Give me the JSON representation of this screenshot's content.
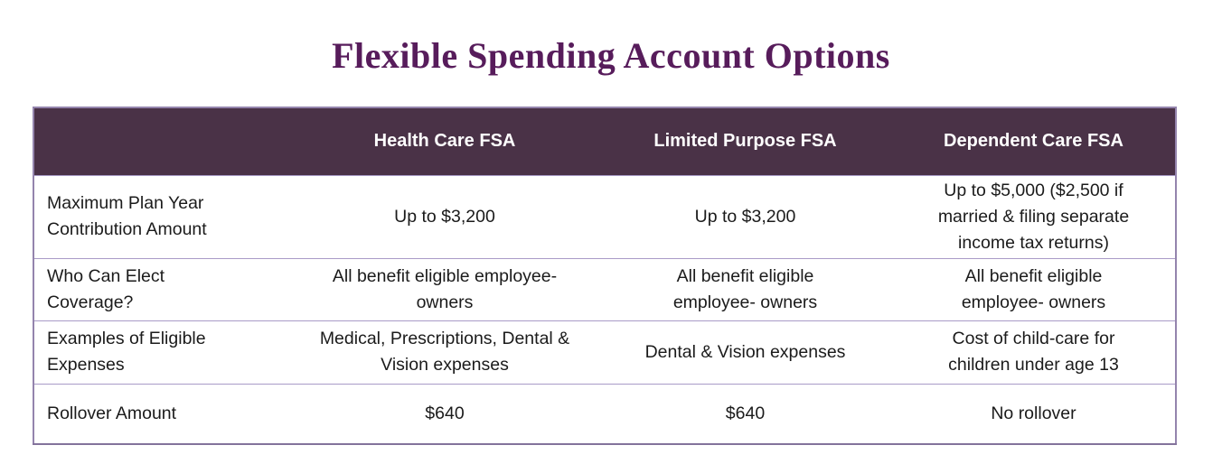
{
  "title": "Flexible Spending Account Options",
  "colors": {
    "title_text": "#571c5b",
    "header_bg": "#4a3247",
    "header_text": "#ffffff",
    "border_outer": "#9484ad",
    "border_inner": "#a99bc7",
    "body_text": "#1b1b1b",
    "page_bg": "#ffffff"
  },
  "table": {
    "columns": [
      "",
      "Health Care FSA",
      "Limited Purpose FSA",
      "Dependent Care FSA"
    ],
    "rows": [
      {
        "label": "Maximum Plan Year\nContribution Amount",
        "cells": [
          "Up to $3,200",
          "Up to $3,200",
          "Up to $5,000 ($2,500 if\nmarried & filing separate\nincome tax returns)"
        ]
      },
      {
        "label": "Who Can Elect\nCoverage?",
        "cells": [
          "All benefit eligible employee-\nowners",
          "All benefit eligible\nemployee- owners",
          "All benefit eligible\nemployee- owners"
        ]
      },
      {
        "label": "Examples of Eligible\nExpenses",
        "cells": [
          "Medical, Prescriptions, Dental &\nVision expenses",
          "Dental & Vision expenses",
          "Cost of child-care for\nchildren under age 13"
        ]
      },
      {
        "label": "Rollover Amount",
        "cells": [
          "$640",
          "$640",
          "No rollover"
        ]
      }
    ]
  }
}
